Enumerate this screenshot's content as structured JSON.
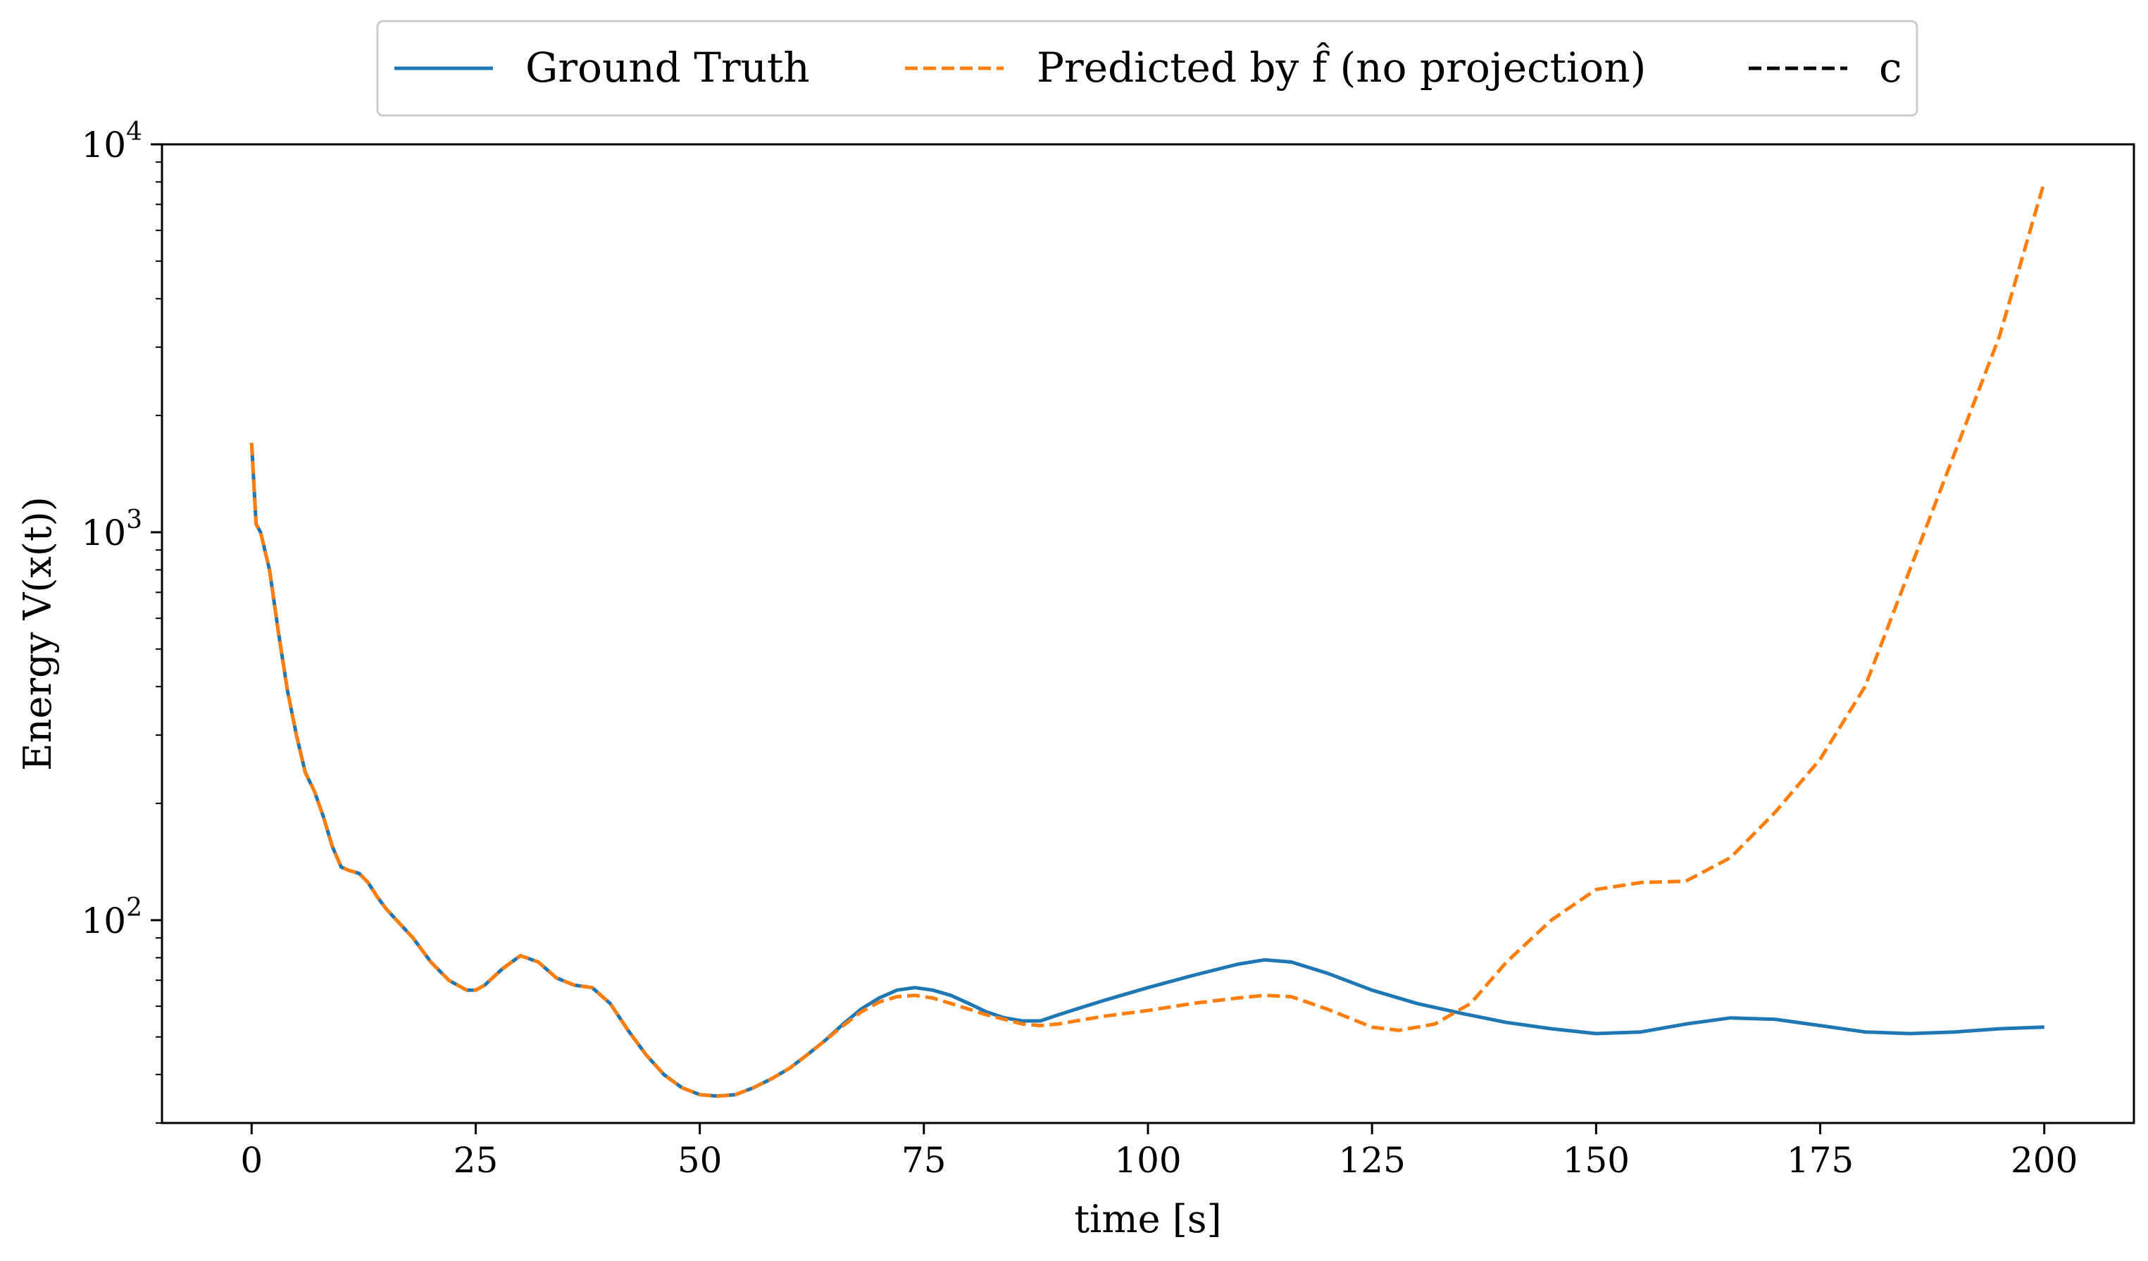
{
  "chart_data": {
    "type": "line",
    "xlabel": "time [s]",
    "ylabel": "Energy V(x(t))",
    "y_scale": "log",
    "xlim": [
      -10,
      210
    ],
    "ylim": [
      30,
      10000
    ],
    "x_ticks": [
      {
        "value": 0,
        "label": "0"
      },
      {
        "value": 25,
        "label": "25"
      },
      {
        "value": 50,
        "label": "50"
      },
      {
        "value": 75,
        "label": "75"
      },
      {
        "value": 100,
        "label": "100"
      },
      {
        "value": 125,
        "label": "125"
      },
      {
        "value": 150,
        "label": "150"
      },
      {
        "value": 175,
        "label": "175"
      },
      {
        "value": 200,
        "label": "200"
      }
    ],
    "y_major_ticks": [
      {
        "value": 100,
        "base": "10",
        "exp": "2"
      },
      {
        "value": 1000,
        "base": "10",
        "exp": "3"
      },
      {
        "value": 10000,
        "base": "10",
        "exp": "4"
      }
    ],
    "legend": {
      "placement": "top-center, outside plot",
      "columns": 3
    },
    "grid": false,
    "series": [
      {
        "name": "Ground Truth",
        "color": "#1f77b4",
        "dash": "solid",
        "x": [
          0,
          0.5,
          1,
          2,
          3,
          4,
          5,
          6,
          7,
          8,
          9,
          10,
          11,
          12,
          13,
          14,
          15,
          16,
          18,
          20,
          22,
          24,
          25,
          26,
          28,
          30,
          32,
          34,
          36,
          38,
          40,
          42,
          44,
          46,
          48,
          50,
          52,
          54,
          56,
          58,
          60,
          62,
          64,
          66,
          68,
          70,
          72,
          74,
          76,
          78,
          80,
          82,
          84,
          86,
          88,
          90,
          92,
          95,
          100,
          105,
          110,
          113,
          116,
          120,
          125,
          130,
          135,
          140,
          145,
          150,
          155,
          160,
          165,
          170,
          175,
          180,
          185,
          190,
          195,
          200
        ],
        "y": [
          1700,
          1050,
          1000,
          800,
          550,
          390,
          300,
          240,
          215,
          185,
          155,
          137,
          134,
          132,
          125,
          115,
          107,
          101,
          90,
          78,
          70,
          66,
          66,
          68,
          75,
          81,
          78,
          71,
          68,
          67,
          61,
          52,
          45,
          40,
          37,
          35.5,
          35.2,
          35.5,
          37,
          39,
          41.5,
          45,
          49,
          54,
          59,
          63,
          66,
          67,
          66,
          64,
          61,
          58,
          56,
          55,
          55,
          57,
          59,
          62,
          67,
          72,
          77,
          79,
          78,
          73,
          66,
          61,
          57.5,
          54.5,
          52.5,
          51,
          51.5,
          54,
          56,
          55.5,
          53.5,
          51.5,
          51,
          51.5,
          52.5,
          53
        ]
      },
      {
        "name": "Predicted by f̂ (no projection)",
        "color": "#ff7f0e",
        "dash": "dashed",
        "x": [
          0,
          0.5,
          1,
          2,
          3,
          4,
          5,
          6,
          7,
          8,
          9,
          10,
          11,
          12,
          13,
          14,
          15,
          16,
          18,
          20,
          22,
          24,
          25,
          26,
          28,
          30,
          32,
          34,
          36,
          38,
          40,
          42,
          44,
          46,
          48,
          50,
          52,
          54,
          56,
          58,
          60,
          62,
          64,
          66,
          68,
          70,
          72,
          74,
          76,
          78,
          80,
          82,
          84,
          86,
          88,
          90,
          92,
          95,
          100,
          105,
          110,
          113,
          116,
          120,
          125,
          128,
          132,
          136,
          140,
          145,
          150,
          155,
          160,
          165,
          170,
          175,
          180,
          185,
          190,
          195,
          200
        ],
        "y": [
          1700,
          1050,
          1000,
          800,
          550,
          390,
          300,
          240,
          215,
          185,
          155,
          137,
          134,
          132,
          125,
          115,
          107,
          101,
          90,
          78,
          70,
          66,
          66,
          68,
          75,
          81,
          78,
          71,
          68,
          67,
          61,
          52,
          45,
          40,
          37,
          35.5,
          35.2,
          35.5,
          37,
          39,
          41.5,
          45,
          49,
          53.5,
          58,
          61.5,
          63.5,
          64,
          63,
          61,
          59,
          57,
          55.5,
          54,
          53.5,
          54,
          55,
          56.5,
          58.5,
          61,
          63,
          64,
          63.5,
          59,
          53,
          52,
          54,
          61,
          78,
          100,
          120,
          125,
          126,
          145,
          190,
          260,
          400,
          800,
          1600,
          3200,
          8000
        ]
      },
      {
        "name": "c",
        "color": "#000000",
        "dash": "dashed",
        "x": [],
        "y": []
      }
    ]
  }
}
